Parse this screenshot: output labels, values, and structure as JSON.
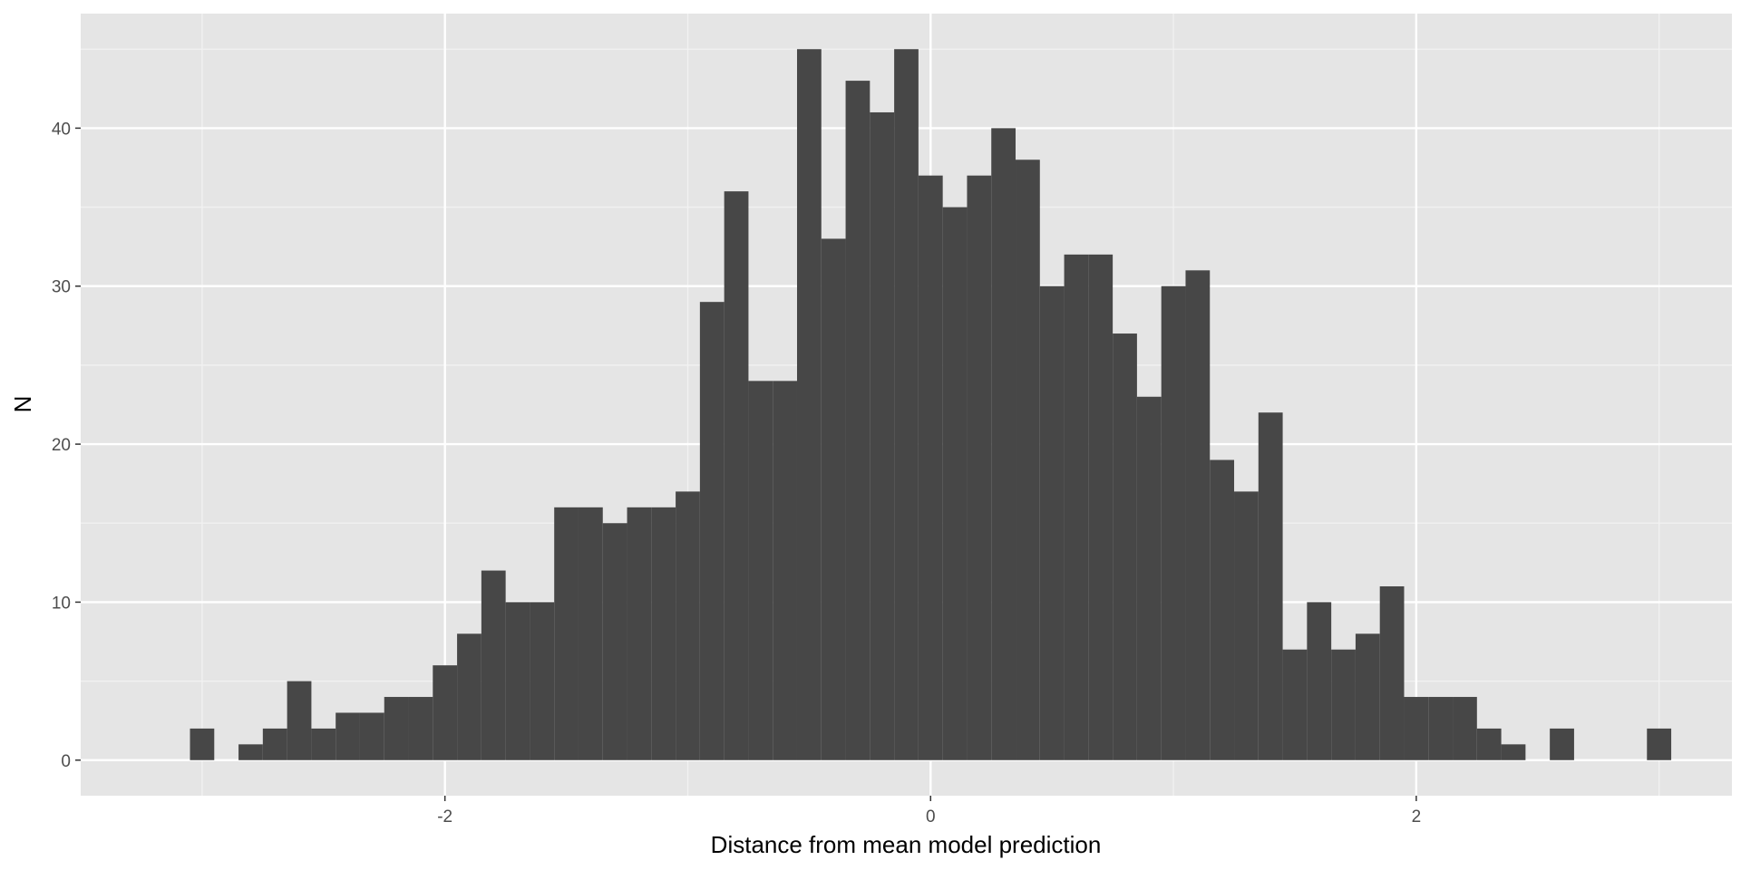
{
  "chart_data": {
    "type": "bar",
    "subtype": "histogram",
    "title": "",
    "xlabel": "Distance from mean model prediction",
    "ylabel": "N",
    "bin_width": 0.1,
    "xlim": [
      -3.5,
      3.3
    ],
    "ylim": [
      -2.25,
      47.25
    ],
    "x_ticks": [
      -2,
      0,
      2
    ],
    "x_tick_labels": [
      "-2",
      "0",
      "2"
    ],
    "y_ticks": [
      0,
      10,
      20,
      30,
      40
    ],
    "y_tick_labels": [
      "0",
      "10",
      "20",
      "30",
      "40"
    ],
    "grid": true,
    "bins": [
      {
        "center": -3.0,
        "count": 2
      },
      {
        "center": -2.9,
        "count": 0
      },
      {
        "center": -2.8,
        "count": 1
      },
      {
        "center": -2.7,
        "count": 2
      },
      {
        "center": -2.6,
        "count": 5
      },
      {
        "center": -2.5,
        "count": 2
      },
      {
        "center": -2.4,
        "count": 3
      },
      {
        "center": -2.3,
        "count": 3
      },
      {
        "center": -2.2,
        "count": 4
      },
      {
        "center": -2.1,
        "count": 4
      },
      {
        "center": -2.0,
        "count": 6
      },
      {
        "center": -1.9,
        "count": 8
      },
      {
        "center": -1.8,
        "count": 12
      },
      {
        "center": -1.7,
        "count": 10
      },
      {
        "center": -1.6,
        "count": 10
      },
      {
        "center": -1.5,
        "count": 16
      },
      {
        "center": -1.4,
        "count": 16
      },
      {
        "center": -1.3,
        "count": 15
      },
      {
        "center": -1.2,
        "count": 16
      },
      {
        "center": -1.1,
        "count": 16
      },
      {
        "center": -1.0,
        "count": 17
      },
      {
        "center": -0.9,
        "count": 29
      },
      {
        "center": -0.8,
        "count": 36
      },
      {
        "center": -0.7,
        "count": 24
      },
      {
        "center": -0.6,
        "count": 24
      },
      {
        "center": -0.5,
        "count": 45
      },
      {
        "center": -0.4,
        "count": 33
      },
      {
        "center": -0.3,
        "count": 43
      },
      {
        "center": -0.2,
        "count": 41
      },
      {
        "center": -0.1,
        "count": 45
      },
      {
        "center": 0.0,
        "count": 37
      },
      {
        "center": 0.1,
        "count": 35
      },
      {
        "center": 0.2,
        "count": 37
      },
      {
        "center": 0.3,
        "count": 40
      },
      {
        "center": 0.4,
        "count": 38
      },
      {
        "center": 0.5,
        "count": 30
      },
      {
        "center": 0.6,
        "count": 32
      },
      {
        "center": 0.7,
        "count": 32
      },
      {
        "center": 0.8,
        "count": 27
      },
      {
        "center": 0.9,
        "count": 23
      },
      {
        "center": 1.0,
        "count": 30
      },
      {
        "center": 1.1,
        "count": 31
      },
      {
        "center": 1.2,
        "count": 19
      },
      {
        "center": 1.3,
        "count": 17
      },
      {
        "center": 1.4,
        "count": 22
      },
      {
        "center": 1.5,
        "count": 7
      },
      {
        "center": 1.6,
        "count": 10
      },
      {
        "center": 1.7,
        "count": 7
      },
      {
        "center": 1.8,
        "count": 8
      },
      {
        "center": 1.9,
        "count": 11
      },
      {
        "center": 2.0,
        "count": 4
      },
      {
        "center": 2.1,
        "count": 4
      },
      {
        "center": 2.2,
        "count": 4
      },
      {
        "center": 2.3,
        "count": 2
      },
      {
        "center": 2.4,
        "count": 1
      },
      {
        "center": 2.5,
        "count": 0
      },
      {
        "center": 2.6,
        "count": 2
      },
      {
        "center": 2.7,
        "count": 0
      },
      {
        "center": 2.8,
        "count": 0
      },
      {
        "center": 2.9,
        "count": 0
      },
      {
        "center": 3.0,
        "count": 2
      }
    ],
    "colors": {
      "panel_background": "#e5e5e5",
      "grid_major": "#ffffff",
      "grid_minor": "#f2f2f2",
      "bar_fill": "#474747",
      "tick_label": "#4d4d4d",
      "axis_title": "#000000"
    }
  }
}
